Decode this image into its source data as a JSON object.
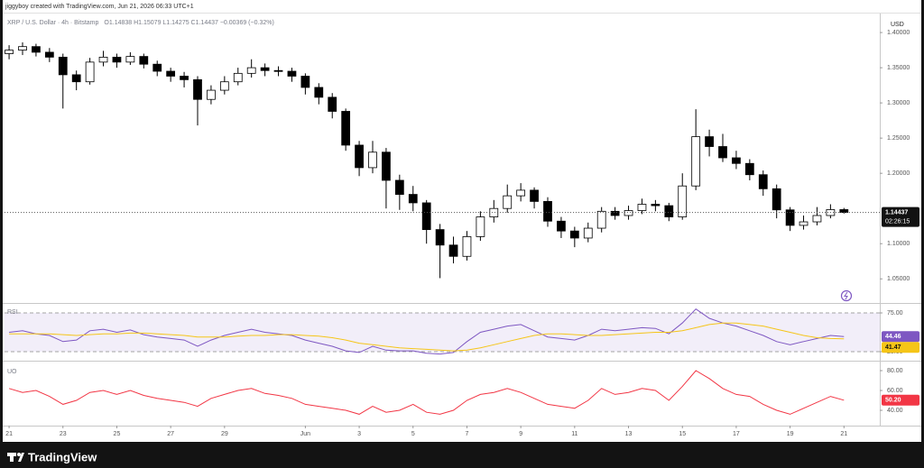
{
  "header": {
    "credit": "jiggyboy created with TradingView.com, Jun 21, 2026 06:33 UTC+1"
  },
  "branding": "TradingView",
  "chart_data": [
    {
      "type": "candlestick",
      "title": "XRP / U.S. Dollar · 4h · Bitstamp",
      "ohlc_text": "O1.14838 H1.15079 L1.14275 C1.14437 −0.00369 (−0.32%)",
      "currency": "USD",
      "countdown": "02:26:15",
      "up_color": "#ffffff",
      "down_color": "#000000",
      "border_color": "#000000",
      "x": [
        0,
        0.5,
        1,
        1.5,
        2,
        2.5,
        3,
        3.5,
        4,
        4.5,
        5,
        5.5,
        6,
        6.5,
        7,
        7.5,
        8,
        8.5,
        9,
        9.5,
        10,
        10.5,
        11,
        11.5,
        12,
        12.5,
        13,
        13.5,
        14,
        14.5,
        15,
        15.5,
        16,
        16.5,
        17,
        17.5,
        18,
        18.5,
        19,
        19.5,
        20,
        20.5,
        21,
        21.5,
        22,
        22.5,
        23,
        23.5,
        24,
        24.5,
        25,
        25.5,
        26,
        26.5,
        27,
        27.5,
        28,
        28.5,
        29,
        29.5,
        30,
        30.5,
        31
      ],
      "open": [
        1.37,
        1.375,
        1.38,
        1.372,
        1.365,
        1.34,
        1.33,
        1.358,
        1.365,
        1.358,
        1.366,
        1.355,
        1.345,
        1.338,
        1.333,
        1.305,
        1.318,
        1.33,
        1.342,
        1.35,
        1.346,
        1.345,
        1.338,
        1.322,
        1.308,
        1.288,
        1.24,
        1.208,
        1.23,
        1.19,
        1.17,
        1.158,
        1.12,
        1.098,
        1.082,
        1.11,
        1.138,
        1.15,
        1.168,
        1.176,
        1.16,
        1.132,
        1.118,
        1.108,
        1.122,
        1.146,
        1.14,
        1.147,
        1.156,
        1.154,
        1.138,
        1.182,
        1.252,
        1.238,
        1.222,
        1.214,
        1.198,
        1.178,
        1.148,
        1.126,
        1.131,
        1.14,
        1.14838
      ],
      "high": [
        1.382,
        1.386,
        1.384,
        1.378,
        1.37,
        1.346,
        1.364,
        1.374,
        1.37,
        1.372,
        1.37,
        1.36,
        1.35,
        1.344,
        1.338,
        1.325,
        1.338,
        1.35,
        1.362,
        1.356,
        1.352,
        1.35,
        1.342,
        1.328,
        1.314,
        1.292,
        1.246,
        1.246,
        1.236,
        1.198,
        1.182,
        1.162,
        1.128,
        1.11,
        1.118,
        1.146,
        1.162,
        1.184,
        1.186,
        1.18,
        1.166,
        1.138,
        1.124,
        1.13,
        1.152,
        1.152,
        1.154,
        1.164,
        1.162,
        1.158,
        1.2,
        1.291,
        1.262,
        1.256,
        1.232,
        1.22,
        1.204,
        1.184,
        1.152,
        1.14,
        1.152,
        1.156,
        1.15079
      ],
      "low": [
        1.362,
        1.368,
        1.366,
        1.358,
        1.292,
        1.318,
        1.326,
        1.352,
        1.35,
        1.354,
        1.349,
        1.338,
        1.33,
        1.322,
        1.268,
        1.298,
        1.312,
        1.325,
        1.336,
        1.338,
        1.338,
        1.33,
        1.312,
        1.298,
        1.278,
        1.232,
        1.196,
        1.2,
        1.15,
        1.148,
        1.146,
        1.1,
        1.051,
        1.072,
        1.076,
        1.104,
        1.13,
        1.144,
        1.16,
        1.15,
        1.124,
        1.108,
        1.095,
        1.102,
        1.116,
        1.134,
        1.134,
        1.142,
        1.146,
        1.132,
        1.134,
        1.176,
        1.224,
        1.216,
        1.206,
        1.19,
        1.168,
        1.136,
        1.118,
        1.12,
        1.126,
        1.136,
        1.14275
      ],
      "close": [
        1.375,
        1.38,
        1.372,
        1.365,
        1.34,
        1.33,
        1.358,
        1.365,
        1.358,
        1.366,
        1.355,
        1.345,
        1.338,
        1.333,
        1.305,
        1.318,
        1.33,
        1.342,
        1.35,
        1.346,
        1.345,
        1.338,
        1.322,
        1.308,
        1.288,
        1.24,
        1.208,
        1.23,
        1.19,
        1.17,
        1.158,
        1.12,
        1.098,
        1.082,
        1.11,
        1.138,
        1.15,
        1.168,
        1.176,
        1.16,
        1.132,
        1.118,
        1.108,
        1.122,
        1.146,
        1.14,
        1.147,
        1.156,
        1.154,
        1.138,
        1.182,
        1.252,
        1.238,
        1.222,
        1.214,
        1.198,
        1.178,
        1.148,
        1.126,
        1.131,
        1.14,
        1.14838,
        1.14437
      ],
      "xlim": [
        -0.17,
        32.33
      ],
      "xticks": [
        {
          "value": 0,
          "label": "21"
        },
        {
          "value": 2,
          "label": "23"
        },
        {
          "value": 4,
          "label": "25"
        },
        {
          "value": 6,
          "label": "27"
        },
        {
          "value": 8,
          "label": "29"
        },
        {
          "value": 11,
          "label": "Jun"
        },
        {
          "value": 13,
          "label": "3"
        },
        {
          "value": 15,
          "label": "5"
        },
        {
          "value": 17,
          "label": "7"
        },
        {
          "value": 19,
          "label": "9"
        },
        {
          "value": 21,
          "label": "11"
        },
        {
          "value": 23,
          "label": "13"
        },
        {
          "value": 25,
          "label": "15"
        },
        {
          "value": 27,
          "label": "17"
        },
        {
          "value": 29,
          "label": "19"
        },
        {
          "value": 31,
          "label": "21"
        }
      ],
      "ylim": [
        1.017,
        1.427
      ],
      "yticks": [
        {
          "value": 1.05,
          "label": "1.05000"
        },
        {
          "value": 1.1,
          "label": "1.10000"
        },
        {
          "value": 1.2,
          "label": "1.20000"
        },
        {
          "value": 1.25,
          "label": "1.25000"
        },
        {
          "value": 1.3,
          "label": "1.30000"
        },
        {
          "value": 1.35,
          "label": "1.35000"
        },
        {
          "value": 1.4,
          "label": "1.40000"
        }
      ],
      "last_price_line": true
    },
    {
      "type": "line",
      "title": "RSI",
      "band": true,
      "band_color": "#7e57c2",
      "x": [
        0,
        0.5,
        1,
        1.5,
        2,
        2.5,
        3,
        3.5,
        4,
        4.5,
        5,
        5.5,
        6,
        6.5,
        7,
        7.5,
        8,
        8.5,
        9,
        9.5,
        10,
        10.5,
        11,
        11.5,
        12,
        12.5,
        13,
        13.5,
        14,
        14.5,
        15,
        15.5,
        16,
        16.5,
        17,
        17.5,
        18,
        18.5,
        19,
        19.5,
        20,
        20.5,
        21,
        21.5,
        22,
        22.5,
        23,
        23.5,
        24,
        24.5,
        25,
        25.5,
        26,
        26.5,
        27,
        27.5,
        28,
        28.5,
        29,
        29.5,
        30,
        30.5,
        31
      ],
      "series": [
        {
          "color": "#7e57c2",
          "values": [
            50,
            52,
            48,
            46,
            38,
            40,
            52,
            54,
            50,
            53,
            47,
            44,
            42,
            40,
            32,
            40,
            46,
            50,
            54,
            50,
            48,
            46,
            40,
            36,
            32,
            26,
            24,
            32,
            27,
            26,
            26,
            23,
            22,
            24,
            38,
            50,
            54,
            58,
            60,
            52,
            44,
            42,
            40,
            46,
            54,
            52,
            54,
            56,
            55,
            48,
            62,
            80,
            68,
            62,
            58,
            52,
            46,
            38,
            34,
            38,
            42,
            46,
            44.46
          ]
        },
        {
          "color": "#f5c518",
          "values": [
            48,
            48,
            48,
            48,
            47,
            46,
            47,
            48,
            48,
            49,
            49,
            48,
            47,
            46,
            44,
            44,
            44,
            45,
            46,
            46,
            47,
            47,
            46,
            45,
            43,
            40,
            36,
            34,
            32,
            30,
            29,
            28,
            27,
            26,
            27,
            30,
            34,
            38,
            42,
            46,
            48,
            48,
            47,
            46,
            46,
            47,
            48,
            49,
            50,
            50,
            52,
            56,
            60,
            62,
            62,
            60,
            58,
            54,
            50,
            46,
            43,
            42,
            41.47
          ]
        }
      ],
      "ylim": [
        15.7,
        85.5
      ],
      "yticks": [
        {
          "value": 25,
          "label": "25.00"
        },
        {
          "value": 75,
          "label": "75.00"
        }
      ]
    },
    {
      "type": "line",
      "title": "UO",
      "x": [
        0,
        0.5,
        1,
        1.5,
        2,
        2.5,
        3,
        3.5,
        4,
        4.5,
        5,
        5.5,
        6,
        6.5,
        7,
        7.5,
        8,
        8.5,
        9,
        9.5,
        10,
        10.5,
        11,
        11.5,
        12,
        12.5,
        13,
        13.5,
        14,
        14.5,
        15,
        15.5,
        16,
        16.5,
        17,
        17.5,
        18,
        18.5,
        19,
        19.5,
        20,
        20.5,
        21,
        21.5,
        22,
        22.5,
        23,
        23.5,
        24,
        24.5,
        25,
        25.5,
        26,
        26.5,
        27,
        27.5,
        28,
        28.5,
        29,
        29.5,
        30,
        30.5,
        31
      ],
      "series": [
        {
          "color": "#f23645",
          "values": [
            62,
            58,
            60,
            54,
            46,
            50,
            58,
            60,
            56,
            60,
            55,
            52,
            50,
            48,
            44,
            52,
            56,
            60,
            62,
            57,
            55,
            52,
            46,
            44,
            42,
            40,
            36,
            44,
            38,
            40,
            46,
            38,
            36,
            40,
            50,
            56,
            58,
            62,
            58,
            52,
            46,
            44,
            42,
            50,
            62,
            56,
            58,
            62,
            60,
            50,
            64,
            80,
            72,
            62,
            56,
            54,
            46,
            40,
            36,
            42,
            48,
            54,
            50.2
          ]
        }
      ],
      "value_labels": [
        "50.20"
      ],
      "ylim": [
        26.4,
        88.2
      ],
      "yticks": [
        {
          "value": 40,
          "label": "40.00"
        },
        {
          "value": 60,
          "label": "60.00"
        },
        {
          "value": 80,
          "label": "80.00"
        }
      ]
    }
  ]
}
